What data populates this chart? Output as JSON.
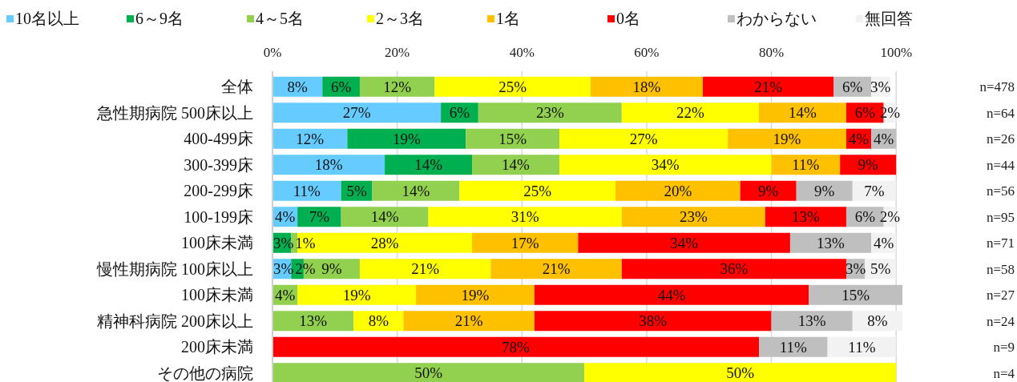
{
  "chart_data": {
    "type": "bar",
    "orientation": "horizontal",
    "stacked": true,
    "legend": "top left",
    "grid": "x",
    "categories": [
      "全体",
      "急性期病院 500床以上",
      "400-499床",
      "300-399床",
      "200-299床",
      "100-199床",
      "100床未満",
      "慢性期病院 100床以上",
      "100床未満",
      "精神科病院 200床以上",
      "200床未満",
      "その他の病院"
    ],
    "xlim": [
      0,
      101
    ],
    "xticks": [
      {
        "value": 0,
        "label": "0%"
      },
      {
        "value": 20,
        "label": "20%"
      },
      {
        "value": 40,
        "label": "40%"
      },
      {
        "value": 60,
        "label": "60%"
      },
      {
        "value": 80,
        "label": "80%"
      },
      {
        "value": 100,
        "label": "100%"
      }
    ],
    "series": [
      {
        "name": "10名以上",
        "color": "#66ccff",
        "values": [
          8,
          27,
          12,
          18,
          11,
          4,
          null,
          3,
          null,
          null,
          null,
          null
        ],
        "value_labels": [
          "8%",
          "27%",
          "12%",
          "18%",
          "11%",
          "4%",
          null,
          "3%",
          null,
          null,
          null,
          null
        ]
      },
      {
        "name": "6～9名",
        "color": "#00b050",
        "values": [
          6,
          6,
          19,
          14,
          5,
          7,
          3,
          2,
          null,
          null,
          null,
          null
        ],
        "value_labels": [
          "6%",
          "6%",
          "19%",
          "14%",
          "5%",
          "7%",
          "3%",
          "2%",
          null,
          null,
          null,
          null
        ]
      },
      {
        "name": "4～5名",
        "color": "#92d050",
        "values": [
          12,
          23,
          15,
          14,
          14,
          14,
          1,
          9,
          4,
          13,
          null,
          50
        ],
        "value_labels": [
          "12%",
          "23%",
          "15%",
          "14%",
          "14%",
          "14%",
          "1%",
          "9%",
          "4%",
          "13%",
          null,
          "50%"
        ]
      },
      {
        "name": "2～3名",
        "color": "#ffff00",
        "values": [
          25,
          22,
          27,
          34,
          25,
          31,
          28,
          21,
          19,
          8,
          null,
          50
        ],
        "value_labels": [
          "25%",
          "22%",
          "27%",
          "34%",
          "25%",
          "31%",
          "28%",
          "21%",
          "19%",
          "8%",
          null,
          "50%"
        ]
      },
      {
        "name": "1名",
        "color": "#ffc000",
        "values": [
          18,
          14,
          19,
          11,
          20,
          23,
          17,
          21,
          19,
          21,
          null,
          null
        ],
        "value_labels": [
          "18%",
          "14%",
          "19%",
          "11%",
          "20%",
          "23%",
          "17%",
          "21%",
          "19%",
          "21%",
          null,
          null
        ]
      },
      {
        "name": "0名",
        "color": "#ff0000",
        "values": [
          21,
          6,
          4,
          9,
          9,
          13,
          34,
          36,
          44,
          38,
          78,
          null
        ],
        "value_labels": [
          "21%",
          "6%",
          "4%",
          "9%",
          "9%",
          "13%",
          "34%",
          "36%",
          "44%",
          "38%",
          "78%",
          null
        ]
      },
      {
        "name": "わからない",
        "color": "#bfbfbf",
        "values": [
          6,
          null,
          4,
          null,
          9,
          6,
          13,
          3,
          15,
          13,
          11,
          null
        ],
        "value_labels": [
          "6%",
          null,
          "4%",
          null,
          "9%",
          "6%",
          "13%",
          "3%",
          "15%",
          "13%",
          "11%",
          null
        ]
      },
      {
        "name": "無回答",
        "color": "#f2f2f2",
        "values": [
          3,
          2,
          null,
          null,
          7,
          2,
          4,
          5,
          null,
          8,
          11,
          null
        ],
        "value_labels": [
          "3%",
          "2%",
          null,
          null,
          "7%",
          "2%",
          "4%",
          "5%",
          null,
          "8%",
          "11%",
          null
        ]
      }
    ],
    "annotations": [
      "n=478",
      "n=64",
      "n=26",
      "n=44",
      "n=56",
      "n=95",
      "n=71",
      "n=58",
      "n=27",
      "n=24",
      "n=9",
      "n=4"
    ]
  }
}
